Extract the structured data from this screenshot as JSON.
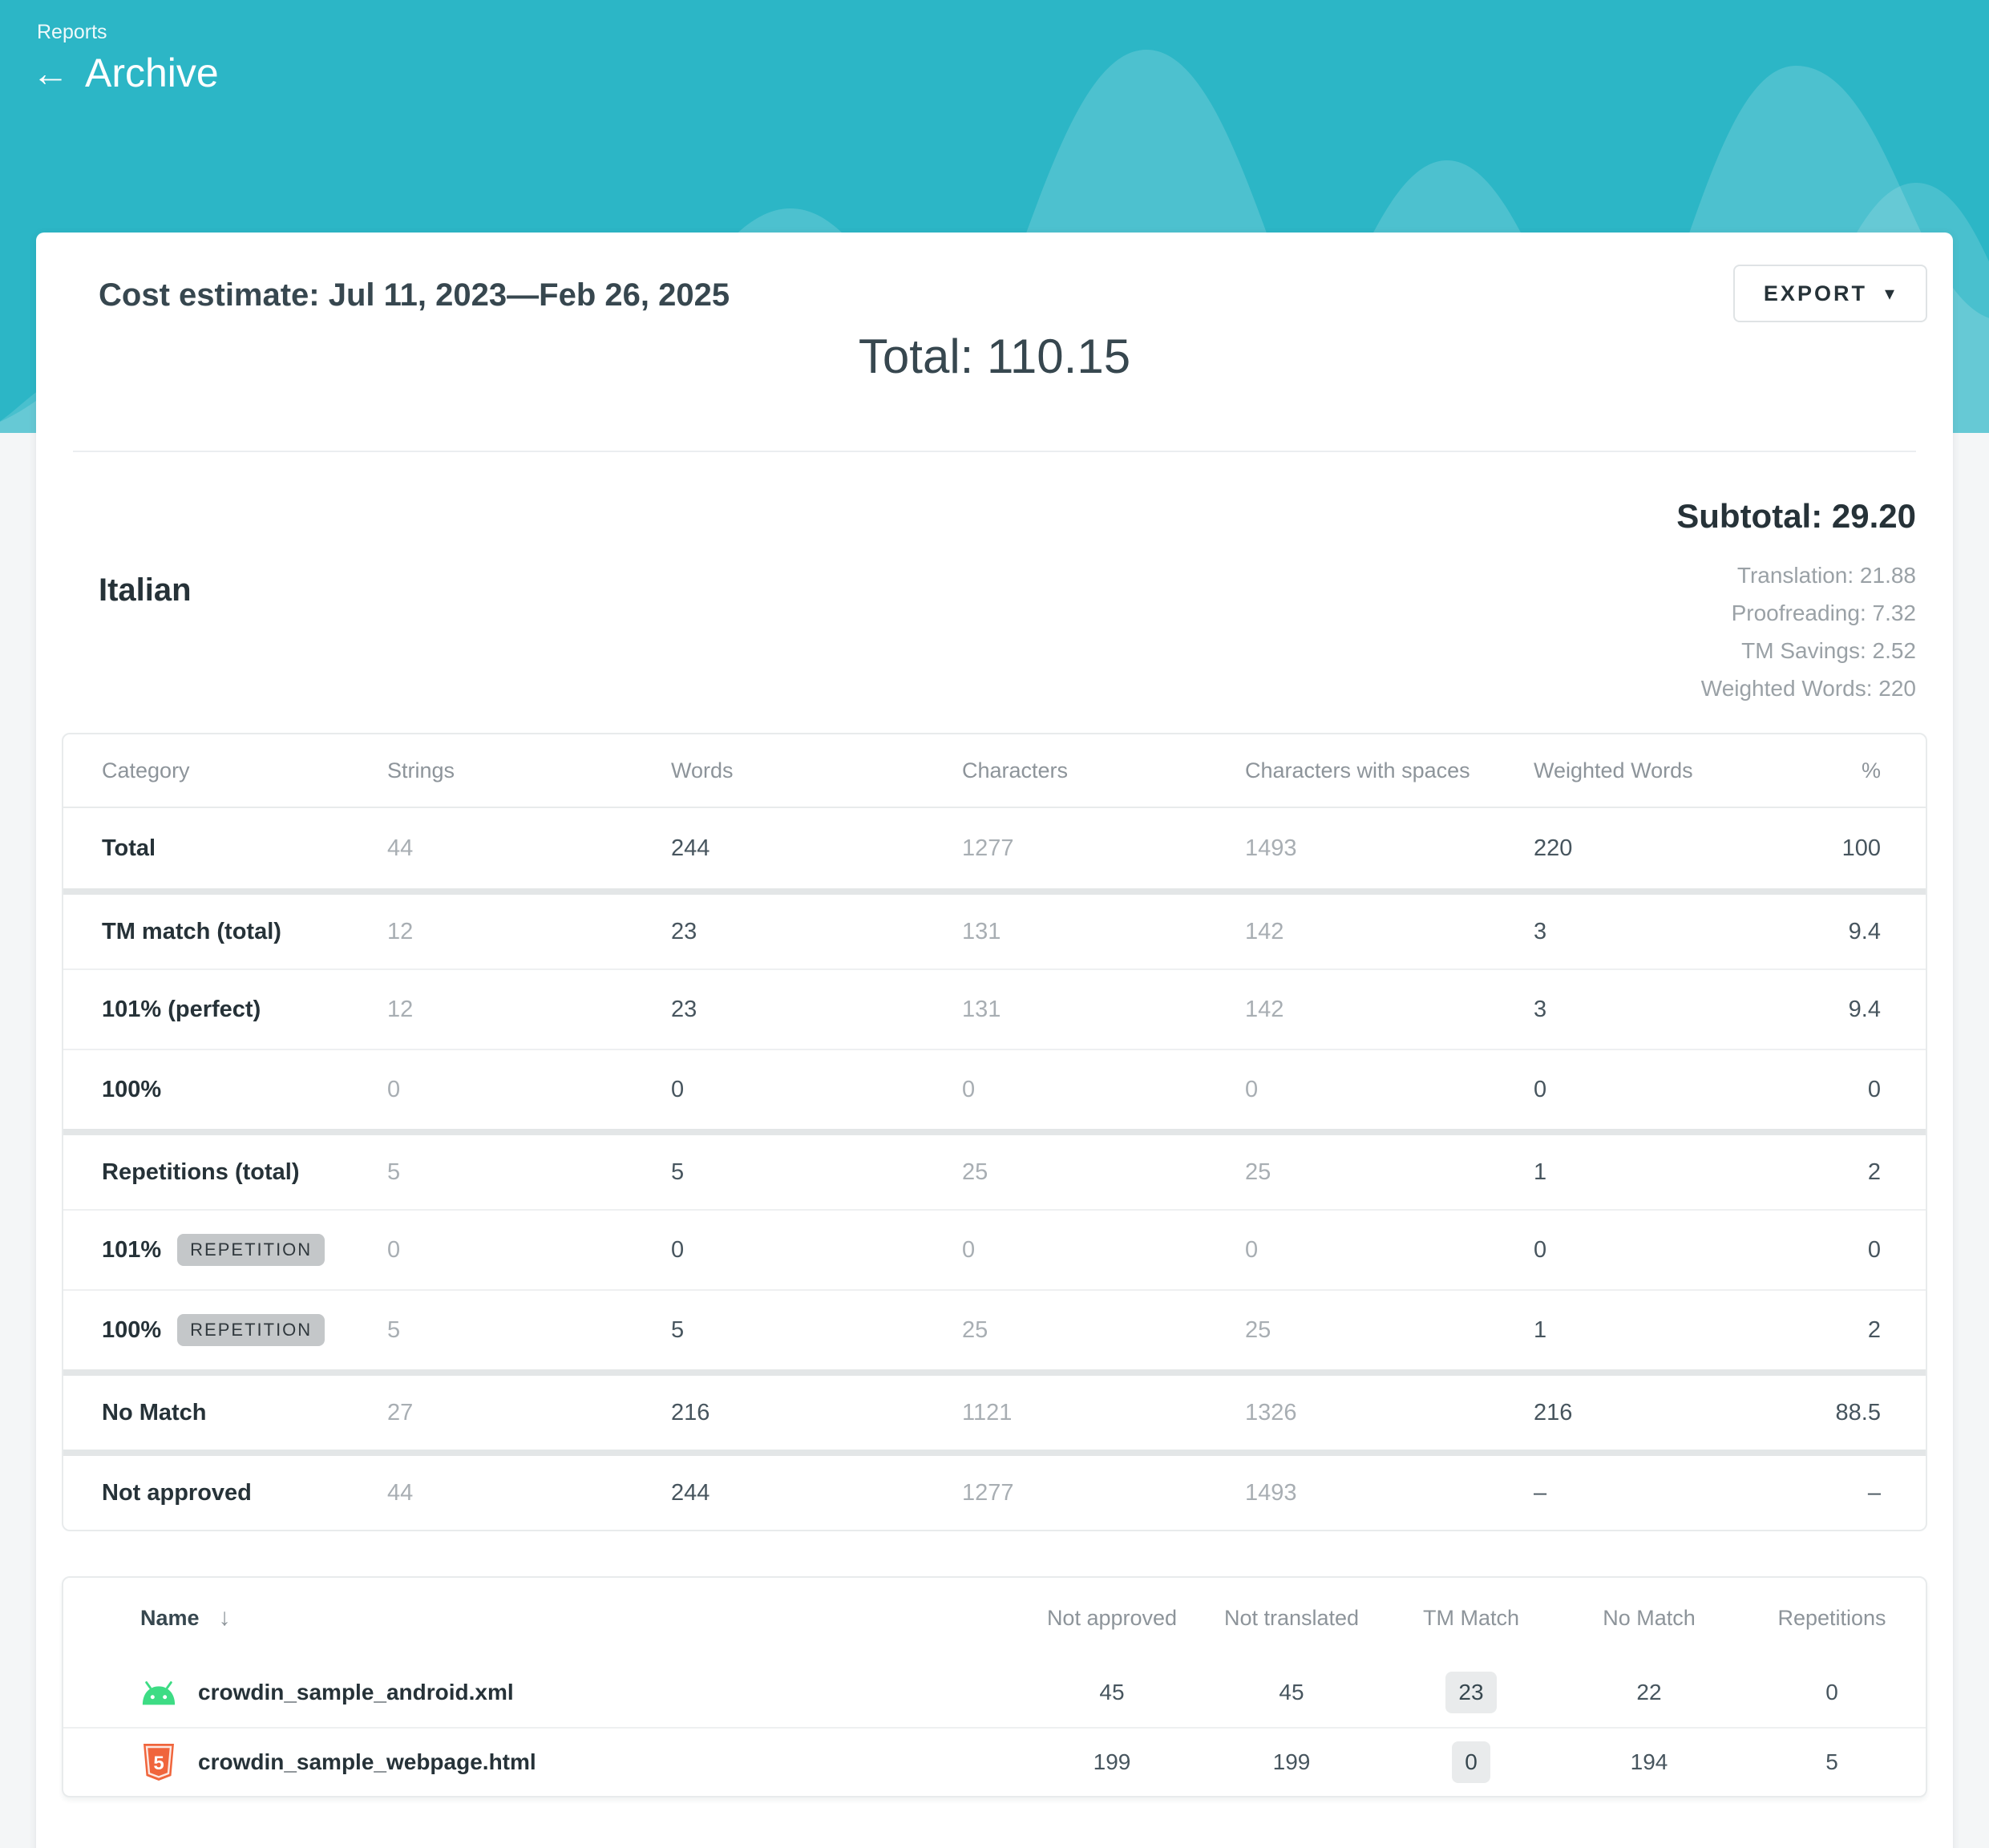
{
  "colors": {
    "hero_teal": "#2cb6c6",
    "wave_tint": "rgba(255,255,255,0.16)",
    "card_bg": "#ffffff",
    "dark_text": "#263238",
    "gray_text": "#9aa1a6",
    "android_green": "#3ddc84",
    "html_orange": "#f0653c"
  },
  "hero": {
    "breadcrumb": "Reports",
    "back_icon": "←",
    "title": "Archive"
  },
  "report": {
    "title": "Cost estimate: Jul 11, 2023—Feb 26, 2025",
    "export_label": "EXPORT",
    "export_caret": "▾",
    "grand_total": "Total: 110.15"
  },
  "language": {
    "name": "Italian",
    "subtotal": "Subtotal: 29.20",
    "details": [
      {
        "text": "Translation: 21.88"
      },
      {
        "text": "Proofreading: 7.32"
      },
      {
        "text": "TM Savings: 2.52"
      },
      {
        "text": "Weighted Words: 220"
      }
    ]
  },
  "category_table": {
    "headers": [
      "Category",
      "Strings",
      "Words",
      "Characters",
      "Characters with spaces",
      "Weighted Words",
      "%"
    ],
    "rows": [
      {
        "label": "Total",
        "badge": null,
        "section": false,
        "values": [
          "44",
          "244",
          "1277",
          "1493",
          "220",
          "100"
        ]
      },
      {
        "label": "TM match (total)",
        "badge": null,
        "section": true,
        "values": [
          "12",
          "23",
          "131",
          "142",
          "3",
          "9.4"
        ]
      },
      {
        "label": "101% (perfect)",
        "badge": null,
        "section": false,
        "values": [
          "12",
          "23",
          "131",
          "142",
          "3",
          "9.4"
        ]
      },
      {
        "label": "100%",
        "badge": null,
        "section": false,
        "values": [
          "0",
          "0",
          "0",
          "0",
          "0",
          "0"
        ]
      },
      {
        "label": "Repetitions (total)",
        "badge": null,
        "section": true,
        "values": [
          "5",
          "5",
          "25",
          "25",
          "1",
          "2"
        ]
      },
      {
        "label": "101%",
        "badge": "REPETITION",
        "section": false,
        "values": [
          "0",
          "0",
          "0",
          "0",
          "0",
          "0"
        ]
      },
      {
        "label": "100%",
        "badge": "REPETITION",
        "section": false,
        "values": [
          "5",
          "5",
          "25",
          "25",
          "1",
          "2"
        ]
      },
      {
        "label": "No Match",
        "badge": null,
        "section": true,
        "values": [
          "27",
          "216",
          "1121",
          "1326",
          "216",
          "88.5"
        ]
      },
      {
        "label": "Not approved",
        "badge": null,
        "section": true,
        "values": [
          "44",
          "244",
          "1277",
          "1493",
          "–",
          "–"
        ]
      }
    ]
  },
  "file_table": {
    "name_header": "Name",
    "sort_icon": "↓",
    "headers": [
      "Not approved",
      "Not translated",
      "TM Match",
      "No Match",
      "Repetitions"
    ],
    "rows": [
      {
        "icon": "android-file-icon",
        "name": "crowdin_sample_android.xml",
        "not_approved": "45",
        "not_translated": "45",
        "tm_match": "23",
        "no_match": "22",
        "repetitions": "0"
      },
      {
        "icon": "html-file-icon",
        "name": "crowdin_sample_webpage.html",
        "not_approved": "199",
        "not_translated": "199",
        "tm_match": "0",
        "no_match": "194",
        "repetitions": "5"
      }
    ]
  }
}
